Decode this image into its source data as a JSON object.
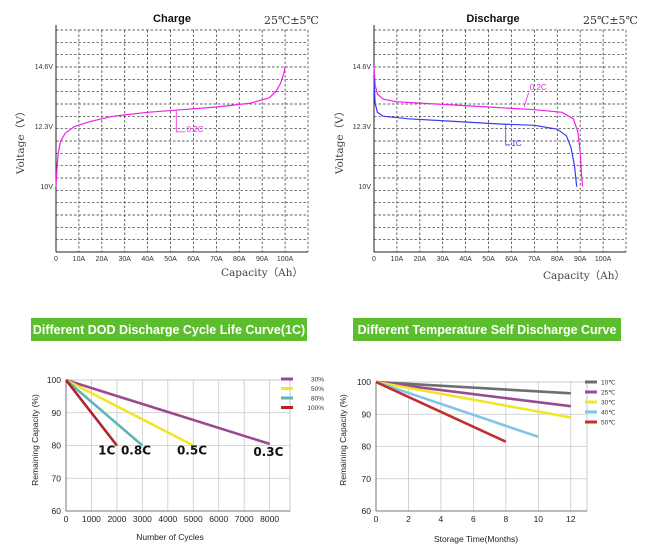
{
  "colors": {
    "banner": "#5cbd2d",
    "pink": "#f020e8",
    "blue": "#3a3af0",
    "purple": "#9a4a8e",
    "yellow": "#f0e628",
    "teal": "#5fb4b8",
    "darkred": "#b0232a",
    "gray": "#6e6e6e",
    "lightblue": "#7ec5e8",
    "red": "#c03030"
  },
  "chart_data": [
    {
      "id": "charge",
      "type": "line",
      "title": "Charge",
      "temp_label": "25℃±5℃",
      "xlabel": "Capacity（Ah）",
      "ylabel": "Voltage（V）",
      "xlim": [
        0,
        110
      ],
      "ylim": [
        7.5,
        16.0
      ],
      "x_ticks": [
        {
          "v": 0,
          "label": "0"
        },
        {
          "v": 10,
          "label": "10A"
        },
        {
          "v": 20,
          "label": "20A"
        },
        {
          "v": 30,
          "label": "30A"
        },
        {
          "v": 40,
          "label": "40A"
        },
        {
          "v": 50,
          "label": "50A"
        },
        {
          "v": 60,
          "label": "60A"
        },
        {
          "v": 70,
          "label": "70A"
        },
        {
          "v": 80,
          "label": "80A"
        },
        {
          "v": 90,
          "label": "90A"
        },
        {
          "v": 100,
          "label": "100A"
        }
      ],
      "y_ticks": [
        {
          "v": 10,
          "label": "10V"
        },
        {
          "v": 12.3,
          "label": "12.3V"
        },
        {
          "v": 14.6,
          "label": "14.6V"
        }
      ],
      "series": [
        {
          "name": "0.2C",
          "color_key": "pink",
          "points": [
            [
              0,
              10.0
            ],
            [
              0.5,
              10.8
            ],
            [
              1,
              11.3
            ],
            [
              2,
              11.75
            ],
            [
              4,
              12.05
            ],
            [
              8,
              12.3
            ],
            [
              15,
              12.5
            ],
            [
              25,
              12.7
            ],
            [
              40,
              12.85
            ],
            [
              55,
              12.95
            ],
            [
              70,
              13.05
            ],
            [
              85,
              13.2
            ],
            [
              93,
              13.4
            ],
            [
              96,
              13.65
            ],
            [
              98,
              13.95
            ],
            [
              99.5,
              14.35
            ],
            [
              100,
              14.6
            ]
          ],
          "label": {
            "x": 57,
            "y": 12.1
          }
        }
      ]
    },
    {
      "id": "discharge",
      "type": "line",
      "title": "Discharge",
      "temp_label": "25℃±5℃",
      "xlabel": "Capacity（Ah）",
      "ylabel": "Voltage（V）",
      "xlim": [
        0,
        110
      ],
      "ylim": [
        7.5,
        16.0
      ],
      "x_ticks": [
        {
          "v": 0,
          "label": "0"
        },
        {
          "v": 10,
          "label": "10A"
        },
        {
          "v": 20,
          "label": "20A"
        },
        {
          "v": 30,
          "label": "30A"
        },
        {
          "v": 40,
          "label": "40A"
        },
        {
          "v": 50,
          "label": "50A"
        },
        {
          "v": 60,
          "label": "60A"
        },
        {
          "v": 70,
          "label": "70A"
        },
        {
          "v": 80,
          "label": "80A"
        },
        {
          "v": 90,
          "label": "90A"
        },
        {
          "v": 100,
          "label": "100A"
        }
      ],
      "y_ticks": [
        {
          "v": 10,
          "label": "10V"
        },
        {
          "v": 12.3,
          "label": "12.3V"
        },
        {
          "v": 14.6,
          "label": "14.6V"
        }
      ],
      "series": [
        {
          "name": "0.2C",
          "color_key": "pink",
          "points": [
            [
              0,
              14.6
            ],
            [
              0.5,
              13.9
            ],
            [
              1.5,
              13.55
            ],
            [
              4,
              13.35
            ],
            [
              10,
              13.25
            ],
            [
              30,
              13.15
            ],
            [
              50,
              13.05
            ],
            [
              70,
              12.95
            ],
            [
              82,
              12.85
            ],
            [
              87,
              12.6
            ],
            [
              89,
              12.1
            ],
            [
              90,
              11.3
            ],
            [
              90.5,
              10.6
            ],
            [
              91,
              10.0
            ]
          ],
          "label": {
            "x": 68,
            "y": 13.7
          }
        },
        {
          "name": "1C",
          "color_key": "blue",
          "points": [
            [
              0,
              14.1
            ],
            [
              0.5,
              13.2
            ],
            [
              1.5,
              12.85
            ],
            [
              4,
              12.7
            ],
            [
              15,
              12.6
            ],
            [
              35,
              12.5
            ],
            [
              55,
              12.4
            ],
            [
              70,
              12.35
            ],
            [
              80,
              12.2
            ],
            [
              84,
              11.95
            ],
            [
              86,
              11.5
            ],
            [
              87.5,
              10.8
            ],
            [
              88.5,
              10.0
            ]
          ],
          "label": {
            "x": 60,
            "y": 11.55
          }
        }
      ]
    },
    {
      "id": "dod",
      "type": "line",
      "banner": "Different DOD Discharge Cycle Life Curve(1C)",
      "xlabel": "Number of Cycles",
      "ylabel": "Remaining Capacity (%)",
      "xlim": [
        0,
        8800
      ],
      "ylim": [
        60,
        100
      ],
      "x_ticks": [
        {
          "v": 0,
          "label": "0"
        },
        {
          "v": 1000,
          "label": "1000"
        },
        {
          "v": 2000,
          "label": "2000"
        },
        {
          "v": 3000,
          "label": "3000"
        },
        {
          "v": 4000,
          "label": "4000"
        },
        {
          "v": 5000,
          "label": "5000"
        },
        {
          "v": 6000,
          "label": "6000"
        },
        {
          "v": 7000,
          "label": "7000"
        },
        {
          "v": 8000,
          "label": "8000"
        }
      ],
      "y_ticks": [
        {
          "v": 60,
          "label": "60"
        },
        {
          "v": 70,
          "label": "70"
        },
        {
          "v": 80,
          "label": "80"
        },
        {
          "v": 90,
          "label": "90"
        },
        {
          "v": 100,
          "label": "100"
        }
      ],
      "series": [
        {
          "name": "30%",
          "color_key": "purple",
          "points": [
            [
              0,
              100
            ],
            [
              8000,
              80.5
            ]
          ]
        },
        {
          "name": "50%",
          "color_key": "yellow",
          "points": [
            [
              0,
              100
            ],
            [
              5000,
              80
            ]
          ]
        },
        {
          "name": "80%",
          "color_key": "teal",
          "points": [
            [
              0,
              100
            ],
            [
              3000,
              80
            ]
          ]
        },
        {
          "name": "100%",
          "color_key": "darkred",
          "points": [
            [
              0,
              100
            ],
            [
              2000,
              80
            ]
          ]
        }
      ],
      "annotations": [
        {
          "text": "1C",
          "x": 1600,
          "y": 78.5
        },
        {
          "text": "0.8C",
          "x": 2750,
          "y": 78.5
        },
        {
          "text": "0.5C",
          "x": 4950,
          "y": 78.5
        },
        {
          "text": "0.3C",
          "x": 7950,
          "y": 78
        }
      ]
    },
    {
      "id": "selfdischarge",
      "type": "line",
      "banner": "Different Temperature Self Discharge Curve",
      "xlabel": "Storage Time(Months)",
      "ylabel": "Remaining Capacity (%)",
      "xlim": [
        0,
        13
      ],
      "ylim": [
        60,
        100
      ],
      "x_ticks": [
        {
          "v": 0,
          "label": "0"
        },
        {
          "v": 2,
          "label": "2"
        },
        {
          "v": 4,
          "label": "4"
        },
        {
          "v": 6,
          "label": "6"
        },
        {
          "v": 8,
          "label": "8"
        },
        {
          "v": 10,
          "label": "10"
        },
        {
          "v": 12,
          "label": "12"
        }
      ],
      "y_ticks": [
        {
          "v": 60,
          "label": "60"
        },
        {
          "v": 70,
          "label": "70"
        },
        {
          "v": 80,
          "label": "80"
        },
        {
          "v": 90,
          "label": "90"
        },
        {
          "v": 100,
          "label": "100"
        }
      ],
      "series": [
        {
          "name": "10℃",
          "color_key": "gray",
          "points": [
            [
              0,
              100
            ],
            [
              12,
              96.5
            ]
          ]
        },
        {
          "name": "25℃",
          "color_key": "purple",
          "points": [
            [
              0,
              100
            ],
            [
              12,
              92.5
            ]
          ]
        },
        {
          "name": "30℃",
          "color_key": "yellow",
          "points": [
            [
              0,
              100
            ],
            [
              12,
              89
            ]
          ]
        },
        {
          "name": "40℃",
          "color_key": "lightblue",
          "points": [
            [
              0,
              100
            ],
            [
              10,
              83
            ]
          ]
        },
        {
          "name": "50℃",
          "color_key": "red",
          "points": [
            [
              0,
              100
            ],
            [
              8,
              81.5
            ]
          ]
        }
      ]
    }
  ]
}
